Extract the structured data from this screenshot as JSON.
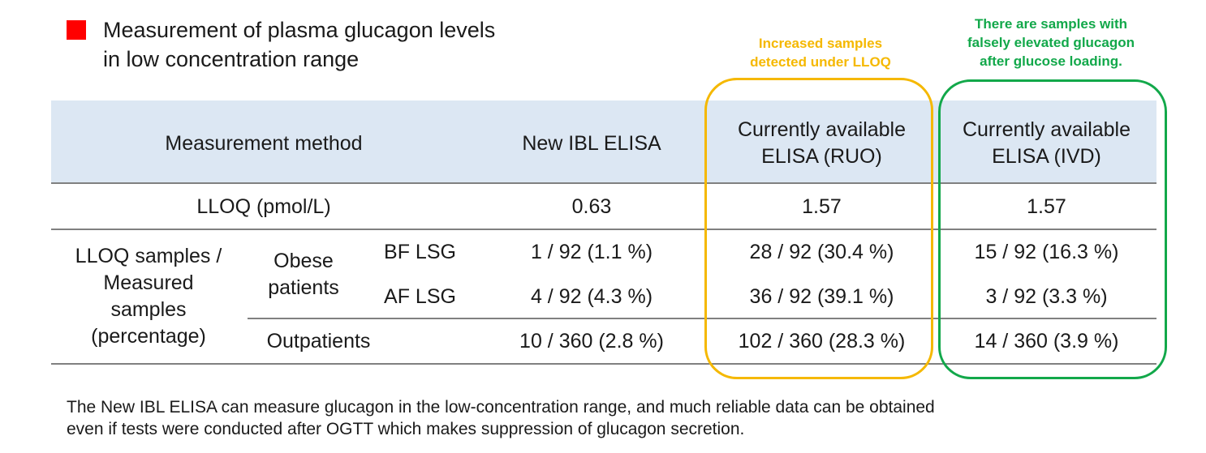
{
  "slide": {
    "title": "Measurement of plasma glucagon levels\n in low concentration range",
    "marker_color": "#ff0000"
  },
  "callouts": {
    "ruo_note": "Increased samples\ndetected under LLOQ",
    "ruo_color": "#f5b800",
    "ivd_note": "There are samples with\nfalsely elevated glucagon\nafter glucose loading.",
    "ivd_color": "#12a84a"
  },
  "table": {
    "header": {
      "method": "Measurement method",
      "new_ibl": "New IBL ELISA",
      "ruo": "Currently available\nELISA (RUO)",
      "ivd": "Currently available\nELISA (IVD)"
    },
    "lloq_row": {
      "label": "LLOQ (pmol/L)",
      "new_ibl": "0.63",
      "ruo": "1.57",
      "ivd": "1.57"
    },
    "group_label": "LLOQ samples /\nMeasured\nsamples\n(percentage)",
    "obese_label": "Obese\npatients",
    "rows": [
      {
        "label": "BF LSG",
        "new_ibl": "1 / 92 (1.1 %)",
        "ruo": "28 / 92 (30.4 %)",
        "ivd": "15 / 92 (16.3 %)"
      },
      {
        "label": "AF LSG",
        "new_ibl": "4 / 92 (4.3 %)",
        "ruo": "36 / 92 (39.1 %)",
        "ivd": "3 / 92 (3.3 %)"
      },
      {
        "label": "Outpatients",
        "new_ibl": "10 / 360 (2.8 %)",
        "ruo": "102 / 360 (28.3 %)",
        "ivd": "14 / 360 (3.9 %)"
      }
    ],
    "header_bg": "#dce7f3"
  },
  "footer": "The New IBL ELISA can measure glucagon in the low-concentration range, and much reliable data can be obtained\neven if tests were conducted after OGTT which makes suppression of glucagon secretion."
}
